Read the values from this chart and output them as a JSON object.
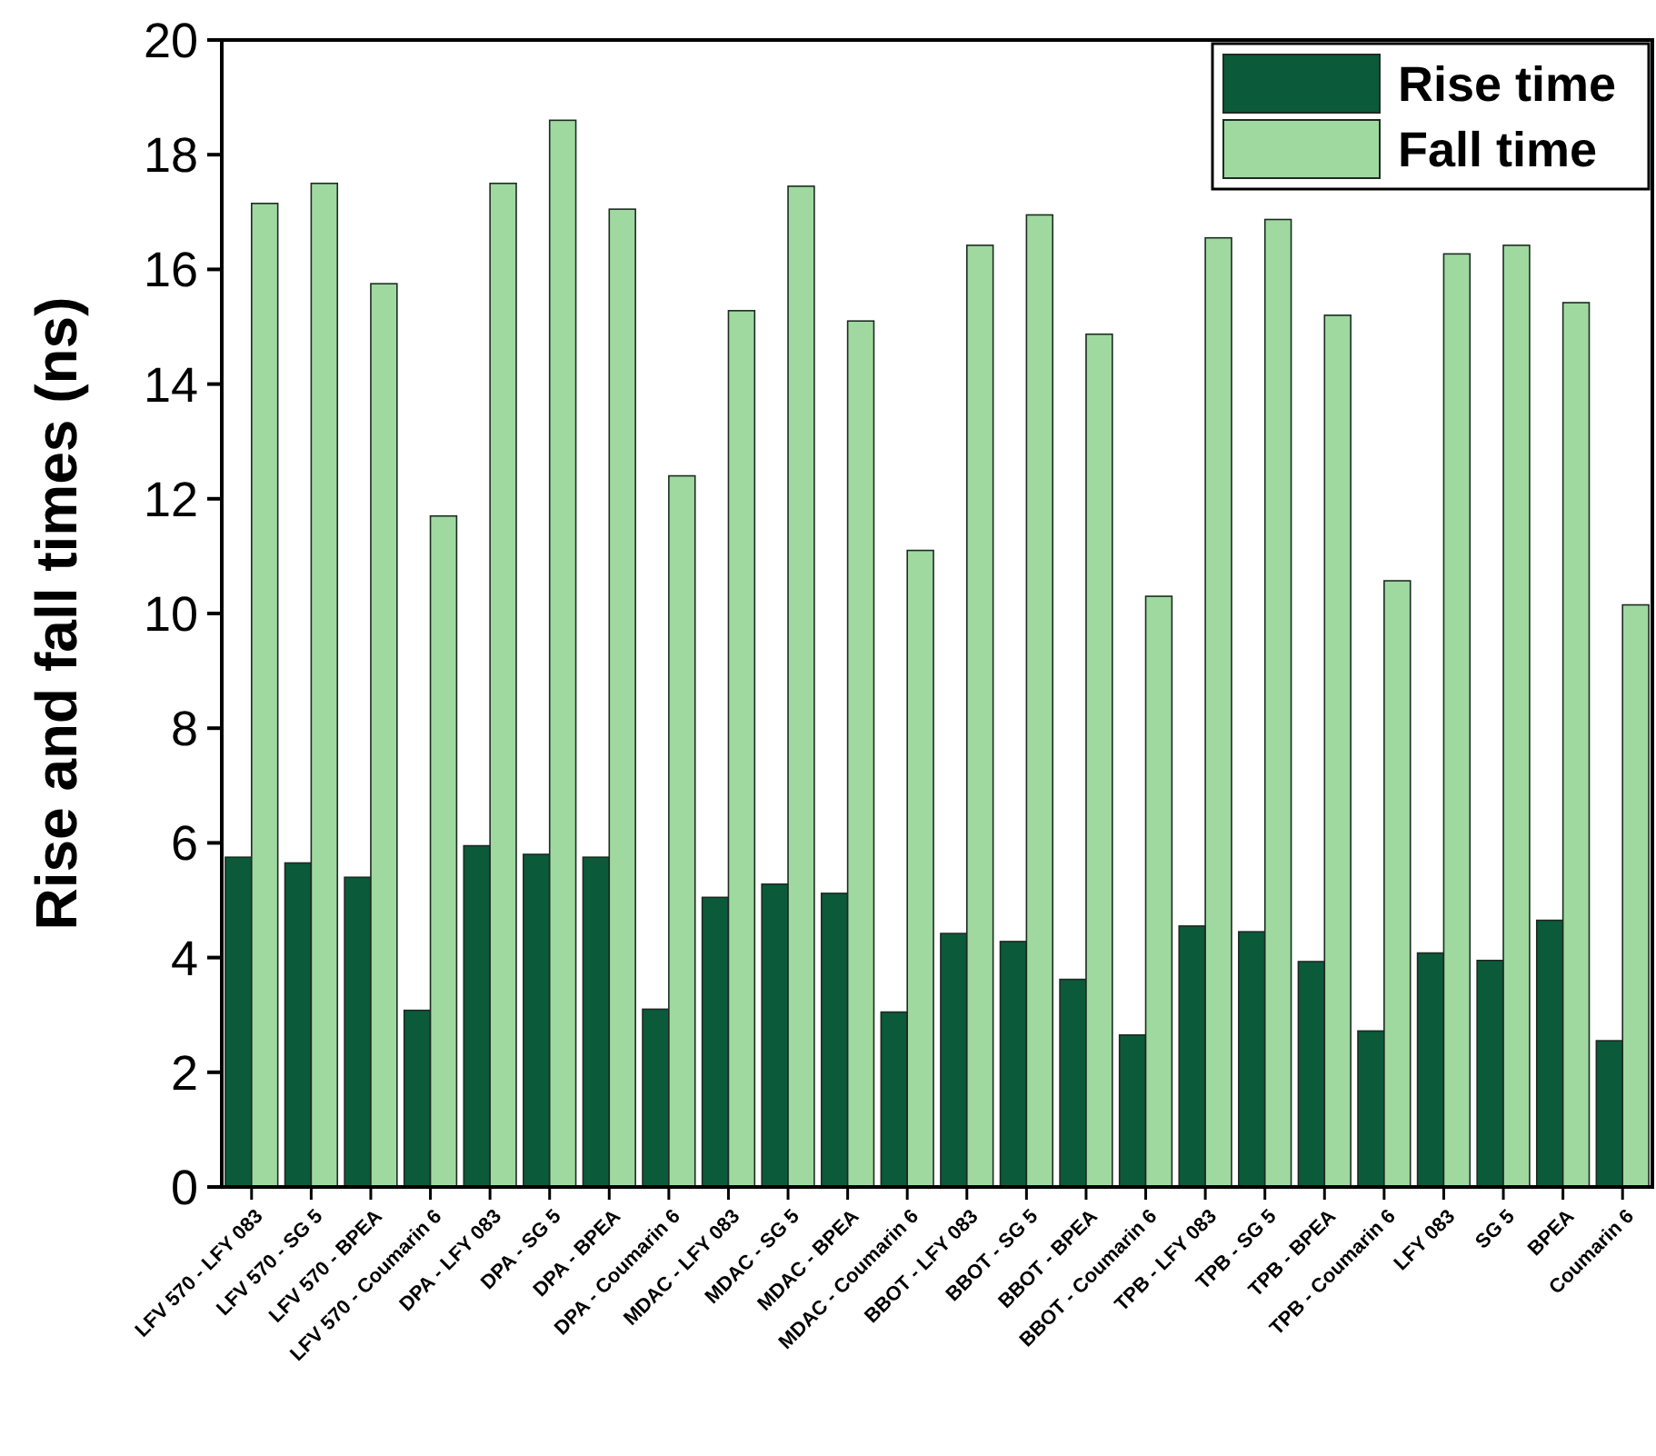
{
  "chart_data": {
    "type": "bar",
    "ylabel": "Rise and fall times (ns)",
    "categories": [
      "LFV 570 - LFY 083",
      "LFV 570 - SG 5",
      "LFV 570 - BPEA",
      "LFV 570 - Coumarin 6",
      "DPA - LFY 083",
      "DPA - SG 5",
      "DPA - BPEA",
      "DPA - Coumarin 6",
      "MDAC - LFY 083",
      "MDAC - SG 5",
      "MDAC - BPEA",
      "MDAC - Coumarin 6",
      "BBOT - LFY 083",
      "BBOT - SG 5",
      "BBOT - BPEA",
      "BBOT - Coumarin 6",
      "TPB - LFY 083",
      "TPB - SG 5",
      "TPB - BPEA",
      "TPB - Coumarin 6",
      "LFY 083",
      "SG 5",
      "BPEA",
      "Coumarin 6"
    ],
    "series": [
      {
        "name": "Rise time",
        "color": "#0b5a3a",
        "values": [
          5.75,
          5.65,
          5.4,
          3.08,
          5.95,
          5.8,
          5.75,
          3.1,
          5.05,
          5.28,
          5.12,
          3.05,
          4.42,
          4.28,
          3.62,
          2.65,
          4.55,
          4.45,
          3.93,
          2.72,
          4.08,
          3.95,
          4.65,
          2.55
        ]
      },
      {
        "name": "Fall time",
        "color": "#9fd9a0",
        "values": [
          17.15,
          17.5,
          15.75,
          11.7,
          17.5,
          18.6,
          17.05,
          12.4,
          15.28,
          17.45,
          15.1,
          11.1,
          16.42,
          16.95,
          14.87,
          10.3,
          16.55,
          16.87,
          15.2,
          10.57,
          16.27,
          16.42,
          15.42,
          10.15
        ]
      }
    ],
    "ylim": [
      0,
      20
    ],
    "yticks": [
      0,
      2,
      4,
      6,
      8,
      10,
      12,
      14,
      16,
      18,
      20
    ],
    "grid": false,
    "legend": "top right"
  }
}
